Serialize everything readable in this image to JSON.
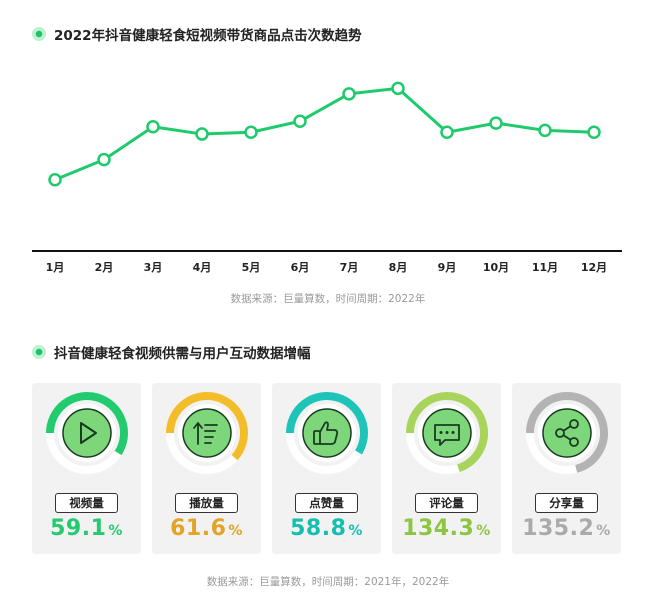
{
  "chart_title": "2022年抖音健康轻食短视频带货商品点击次数趋势",
  "chart_source": "数据来源：巨量算数，时间周期：2022年",
  "chart_data": {
    "type": "line",
    "title": "2022年抖音健康轻食短视频带货商品点击次数趋势",
    "categories": [
      "1月",
      "2月",
      "3月",
      "4月",
      "5月",
      "6月",
      "7月",
      "8月",
      "9月",
      "10月",
      "11月",
      "12月"
    ],
    "series": [
      {
        "values": [
          39,
          50,
          68,
          64,
          65,
          71,
          86,
          89,
          65,
          70,
          66,
          65
        ]
      }
    ],
    "ylim": [
      0,
      110
    ],
    "grid": false,
    "line_color": "#1ecb6b"
  },
  "section2_title": "抖音健康轻食视频供需与用户互动数据增幅",
  "section2_source": "数据来源：巨量算数，时间周期：2021年，2022年",
  "metrics": [
    {
      "label": "视频量",
      "value": "59.1",
      "unit": "%",
      "color": "#22cc6e",
      "icon": "play-icon",
      "ring_fraction": 0.591
    },
    {
      "label": "播放量",
      "value": "61.6",
      "unit": "%",
      "color": "#e3a425",
      "ring_color": "#f3bd2a",
      "icon": "sort-list-icon",
      "ring_fraction": 0.616
    },
    {
      "label": "点赞量",
      "value": "58.8",
      "unit": "%",
      "color": "#14bfb1",
      "ring_color": "#1ec4b8",
      "icon": "thumbs-up-icon",
      "ring_fraction": 0.588
    },
    {
      "label": "评论量",
      "value": "134.3",
      "unit": "%",
      "color": "#8cc63f",
      "ring_color": "#a8d45b",
      "icon": "comment-icon",
      "ring_fraction": 0.7
    },
    {
      "label": "分享量",
      "value": "135.2",
      "unit": "%",
      "color": "#aaaaaa",
      "ring_color": "#b3b3b3",
      "icon": "share-icon",
      "ring_fraction": 0.71
    }
  ]
}
